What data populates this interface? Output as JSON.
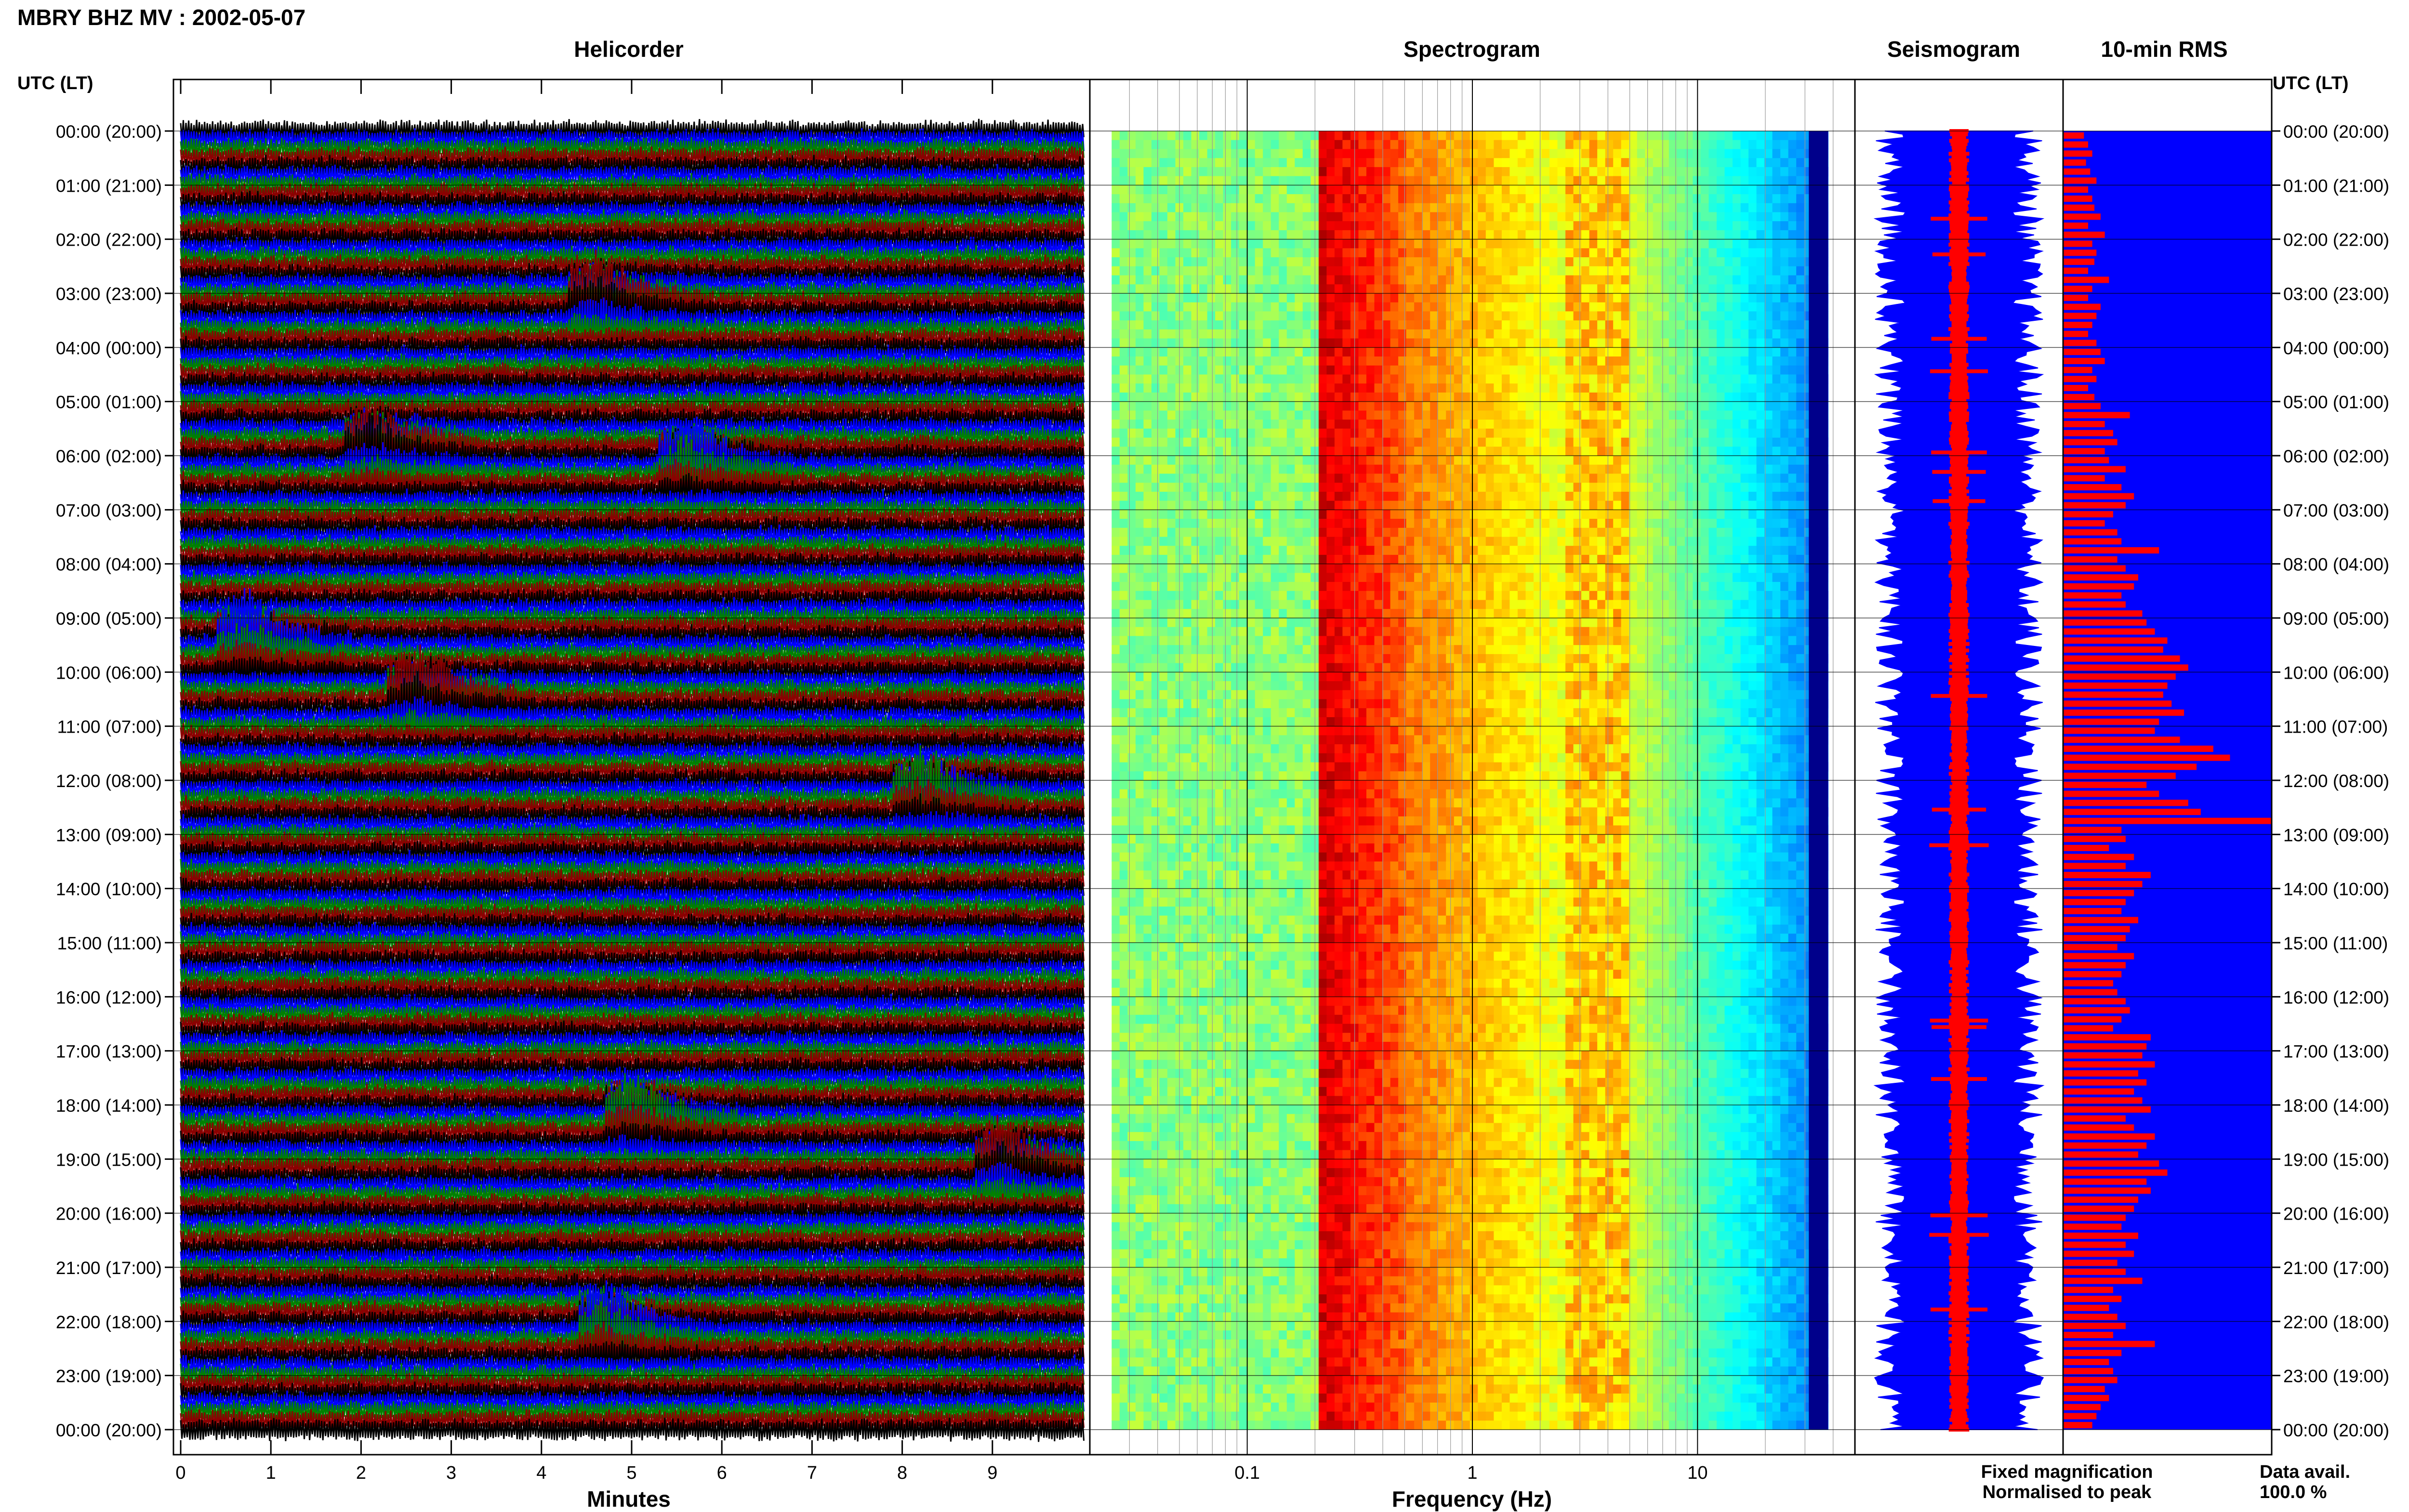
{
  "header": {
    "title": "MBRY BHZ MV : 2002-05-07"
  },
  "panels": {
    "helicorder": "Helicorder",
    "spectrogram": "Spectrogram",
    "seismogram": "Seismogram",
    "rms": "10-min RMS"
  },
  "axis_labels": {
    "left_time": "UTC (LT)",
    "right_time": "UTC (LT)",
    "minutes": "Minutes",
    "frequency": "Frequency (Hz)"
  },
  "legend": {
    "fixed": "Fixed magnification",
    "normalised": "Normalised to peak",
    "fixed_color": "#0000ff",
    "normalised_color": "#ff0000"
  },
  "data_avail": {
    "label": "Data avail.",
    "value": "100.0 %"
  },
  "chart_data": [
    {
      "type": "line",
      "name": "helicorder",
      "title": "Helicorder",
      "xlabel": "Minutes",
      "xlim": [
        0,
        10
      ],
      "x_ticks": [
        "0",
        "1",
        "2",
        "3",
        "4",
        "5",
        "6",
        "7",
        "8",
        "9"
      ],
      "trace_colors": [
        "#000000",
        "#0000ff",
        "#008000",
        "#8b0000"
      ],
      "y_ticks": [
        "00:00 (20:00)",
        "01:00 (21:00)",
        "02:00 (22:00)",
        "03:00 (23:00)",
        "04:00 (00:00)",
        "05:00 (01:00)",
        "06:00 (02:00)",
        "07:00 (03:00)",
        "08:00 (04:00)",
        "09:00 (05:00)",
        "10:00 (06:00)",
        "11:00 (07:00)",
        "12:00 (08:00)",
        "13:00 (09:00)",
        "14:00 (10:00)",
        "15:00 (11:00)",
        "16:00 (12:00)",
        "17:00 (13:00)",
        "18:00 (14:00)",
        "19:00 (15:00)",
        "20:00 (16:00)",
        "21:00 (17:00)",
        "22:00 (18:00)",
        "23:00 (19:00)",
        "00:00 (20:00)"
      ],
      "events_approx": [
        {
          "hour": 3.2,
          "minute": 4.6
        },
        {
          "hour": 5.9,
          "minute": 2.1
        },
        {
          "hour": 6.2,
          "minute": 5.6
        },
        {
          "hour": 9.5,
          "minute": 0.7
        },
        {
          "hour": 10.5,
          "minute": 2.6
        },
        {
          "hour": 12.3,
          "minute": 8.2
        },
        {
          "hour": 18.3,
          "minute": 5.0
        },
        {
          "hour": 19.2,
          "minute": 9.1
        },
        {
          "hour": 22.2,
          "minute": 4.7
        }
      ]
    },
    {
      "type": "heatmap",
      "name": "spectrogram",
      "title": "Spectrogram",
      "xlabel": "Frequency (Hz)",
      "xscale": "log",
      "xlim": [
        0.02,
        50
      ],
      "x_ticks": [
        "0.1",
        "1",
        "10"
      ],
      "colormap": "jet",
      "peak_band_hz": [
        0.2,
        0.5
      ],
      "secondary_band_hz": [
        2.5,
        5
      ],
      "hours": 24
    },
    {
      "type": "line",
      "name": "seismogram",
      "title": "Seismogram",
      "series": [
        {
          "name": "Fixed magnification",
          "color": "#0000ff"
        },
        {
          "name": "Normalised to peak",
          "color": "#ff0000"
        }
      ]
    },
    {
      "type": "bar",
      "name": "rms",
      "title": "10-min RMS",
      "orientation": "horizontal",
      "bar_color": "#ff0000",
      "background_color": "#0000ff",
      "bins": 144,
      "values_relative": [
        0.1,
        0.12,
        0.14,
        0.11,
        0.13,
        0.16,
        0.12,
        0.14,
        0.15,
        0.18,
        0.12,
        0.2,
        0.14,
        0.16,
        0.15,
        0.12,
        0.22,
        0.14,
        0.12,
        0.18,
        0.16,
        0.14,
        0.12,
        0.16,
        0.18,
        0.2,
        0.14,
        0.16,
        0.12,
        0.15,
        0.18,
        0.32,
        0.2,
        0.24,
        0.26,
        0.2,
        0.22,
        0.3,
        0.2,
        0.28,
        0.34,
        0.3,
        0.24,
        0.2,
        0.26,
        0.28,
        0.46,
        0.26,
        0.3,
        0.36,
        0.34,
        0.28,
        0.3,
        0.38,
        0.4,
        0.44,
        0.5,
        0.48,
        0.56,
        0.6,
        0.54,
        0.5,
        0.48,
        0.52,
        0.58,
        0.46,
        0.44,
        0.56,
        0.72,
        0.8,
        0.64,
        0.54,
        0.4,
        0.46,
        0.6,
        0.66,
        1.0,
        0.28,
        0.3,
        0.22,
        0.34,
        0.3,
        0.42,
        0.38,
        0.34,
        0.3,
        0.28,
        0.36,
        0.32,
        0.3,
        0.26,
        0.34,
        0.3,
        0.28,
        0.24,
        0.26,
        0.3,
        0.32,
        0.28,
        0.24,
        0.42,
        0.4,
        0.38,
        0.44,
        0.36,
        0.4,
        0.34,
        0.38,
        0.42,
        0.3,
        0.34,
        0.44,
        0.4,
        0.36,
        0.46,
        0.5,
        0.4,
        0.42,
        0.36,
        0.34,
        0.3,
        0.28,
        0.36,
        0.3,
        0.34,
        0.26,
        0.3,
        0.38,
        0.24,
        0.28,
        0.22,
        0.26,
        0.3,
        0.24,
        0.44,
        0.28,
        0.22,
        0.24,
        0.26,
        0.2,
        0.22,
        0.18,
        0.16,
        0.14
      ]
    }
  ]
}
